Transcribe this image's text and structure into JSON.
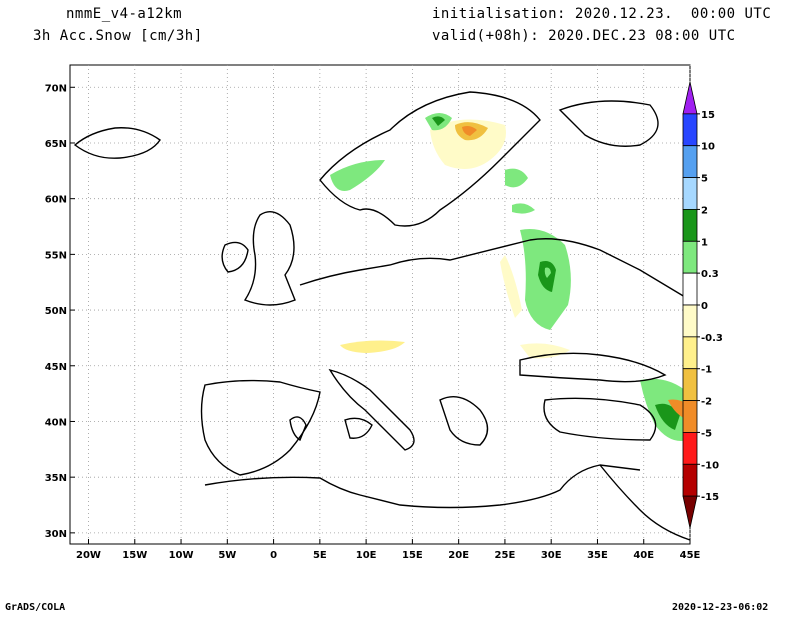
{
  "header": {
    "model": "nmmE_v4-a12km",
    "variable": "3h Acc.Snow [cm/3h]",
    "init": "initialisation: 2020.12.23.  00:00 UTC",
    "valid": "valid(+08h): 2020.DEC.23 08:00 UTC"
  },
  "footer": {
    "left": "GrADS/COLA",
    "right": "2020-12-23-06:02"
  },
  "map": {
    "lon_ticks": [
      "20W",
      "15W",
      "10W",
      "5W",
      "0",
      "5E",
      "10E",
      "15E",
      "20E",
      "25E",
      "30E",
      "35E",
      "40E",
      "45E"
    ],
    "lat_ticks": [
      "70N",
      "65N",
      "60N",
      "55N",
      "50N",
      "45N",
      "40N",
      "35N",
      "30N"
    ],
    "lon_range": [
      -22,
      45
    ],
    "lat_range": [
      29,
      72
    ],
    "grid": "dotted"
  },
  "colorbar": {
    "labels": [
      "15",
      "10",
      "5",
      "2",
      "1",
      "0.3",
      "0",
      "-0.3",
      "-1",
      "-2",
      "-5",
      "-10",
      "-15"
    ],
    "colors": [
      "#a020f0",
      "#2846ff",
      "#55a0f0",
      "#a6d8ff",
      "#1a961a",
      "#7ee87e",
      "#ffffff",
      "#fffbc8",
      "#fff08c",
      "#f0c040",
      "#f08c28",
      "#ff1a1a",
      "#b40000",
      "#780000"
    ]
  }
}
